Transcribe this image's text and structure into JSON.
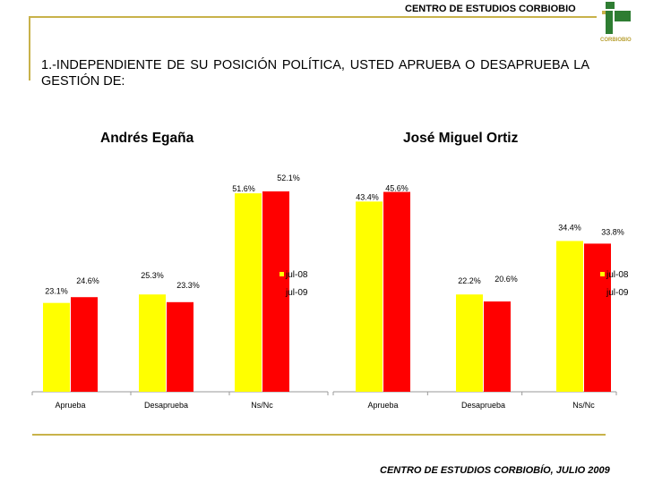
{
  "header": {
    "organization": "CENTRO DE ESTUDIOS CORBIOBIO",
    "logo_text": "CORBIOBIO"
  },
  "question": "1.-INDEPENDIENTE DE SU POSICIÓN POLÍTICA, USTED APRUEBA O DESAPRUEBA LA GESTIÓN DE:",
  "footer": "CENTRO DE ESTUDIOS CORBIOBÍO, JULIO 2009",
  "colors": {
    "series_jul08": "#ffff00",
    "series_jul09": "#ff0000",
    "frame": "#c8b24a",
    "logo": "#2e7d32"
  },
  "chart_data": [
    {
      "type": "bar",
      "title": "Andrés Egaña",
      "categories": [
        "Aprueba",
        "Desaprueba",
        "Ns/Nc"
      ],
      "series": [
        {
          "name": "jul-08",
          "values": [
            23.1,
            25.3,
            51.6
          ],
          "labels": [
            "23.1%",
            "25.3%",
            "51.6%"
          ]
        },
        {
          "name": "jul-09",
          "values": [
            24.6,
            23.3,
            52.1
          ],
          "labels": [
            "24.6%",
            "23.3%",
            "52.1%"
          ]
        }
      ],
      "ylim": [
        0,
        60
      ],
      "legend": "right"
    },
    {
      "type": "bar",
      "title": "José Miguel Ortiz",
      "categories": [
        "Aprueba",
        "Desaprueba",
        "Ns/Nc"
      ],
      "series": [
        {
          "name": "jul-08",
          "values": [
            43.4,
            22.2,
            34.4
          ],
          "labels": [
            "43.4%",
            "22.2%",
            "34.4%"
          ]
        },
        {
          "name": "jul-09",
          "values": [
            45.6,
            20.6,
            33.8
          ],
          "labels": [
            "45.6%",
            "20.6%",
            "33.8%"
          ]
        }
      ],
      "ylim": [
        0,
        60
      ],
      "legend": "right"
    }
  ]
}
